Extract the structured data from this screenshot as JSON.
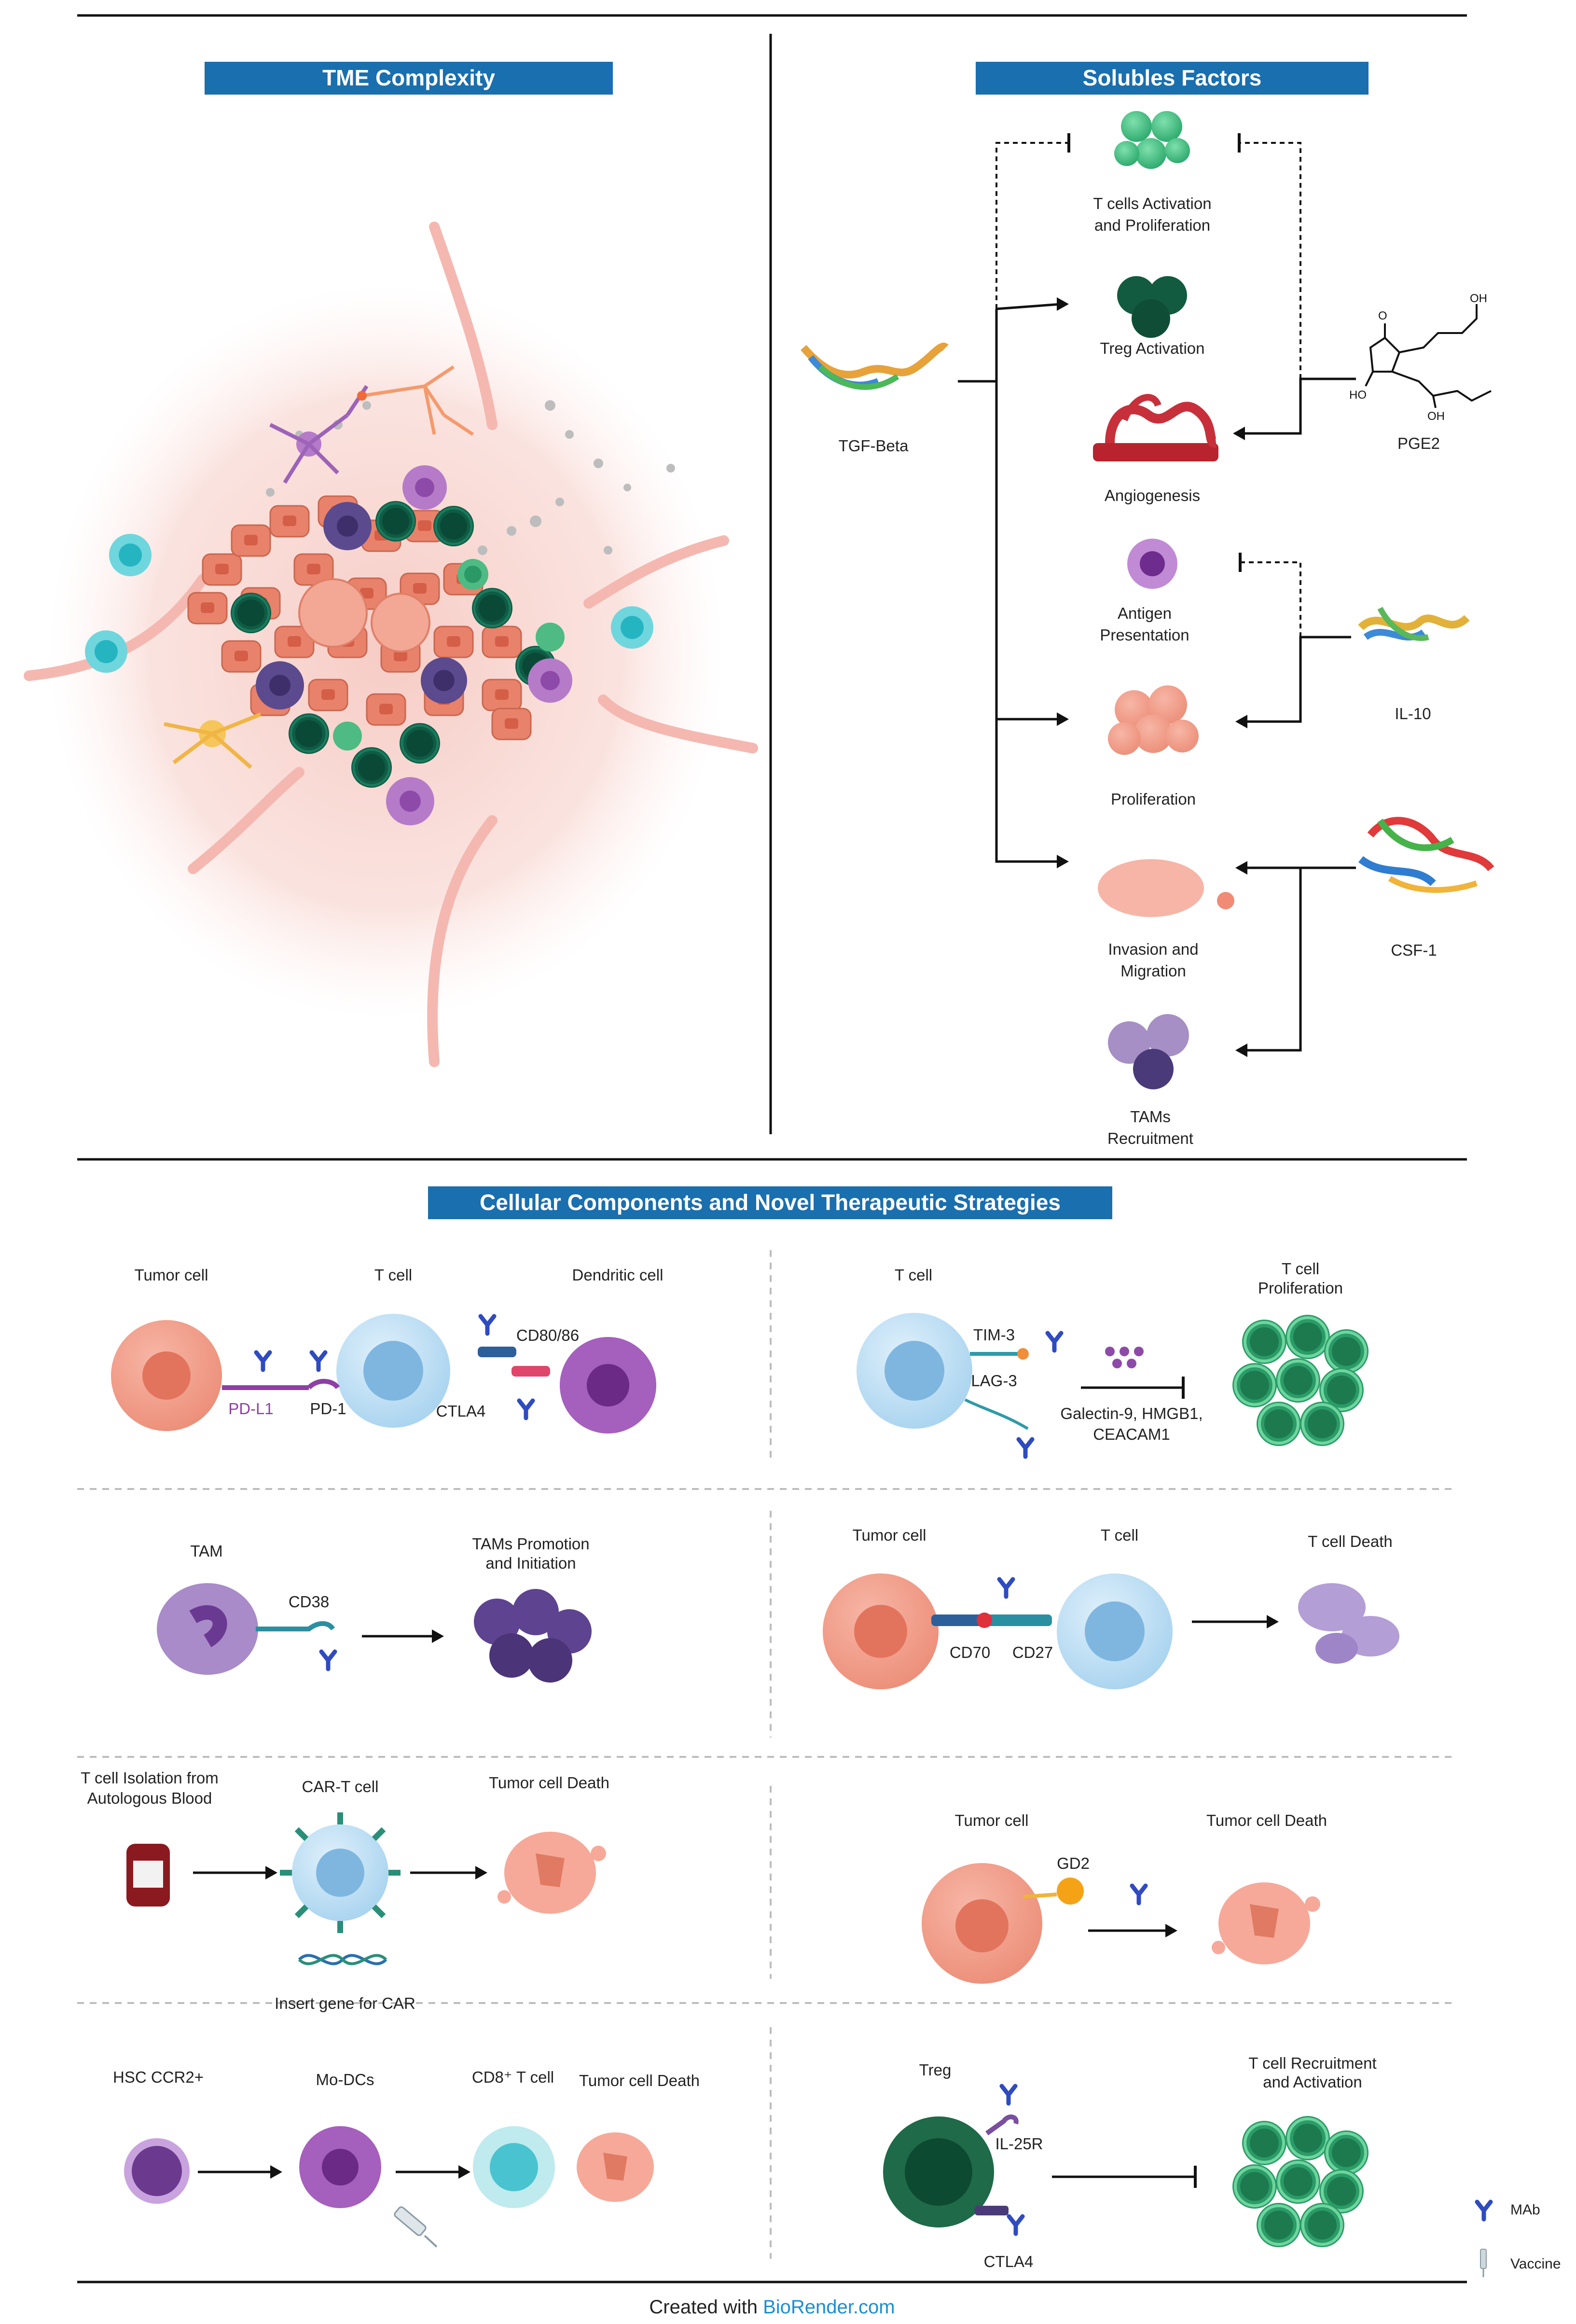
{
  "sections": {
    "tme": "TME Complexity",
    "soluble": "Solubles Factors",
    "cellular": "Cellular Components and Novel Therapeutic Strategies"
  },
  "soluble_panel": {
    "outcomes": {
      "tcell_activation": [
        "T cells Activation",
        "and Proliferation"
      ],
      "treg": "Treg Activation",
      "angiogenesis": "Angiogenesis",
      "antigen": [
        "Antigen",
        "Presentation"
      ],
      "proliferation": "Proliferation",
      "invasion": [
        "Invasion and",
        "Migration"
      ],
      "tams": [
        "TAMs",
        "Recruitment"
      ]
    },
    "factors": {
      "tgf": "TGF-Beta",
      "pge2": "PGE2",
      "il10": "IL-10",
      "csf1": "CSF-1"
    },
    "pge2_atoms": {
      "o": "O",
      "oh1": "OH",
      "ho": "HO",
      "oh2": "OH"
    }
  },
  "cellular_panel": {
    "p1": {
      "tumor": "Tumor cell",
      "tcell": "T cell",
      "dc": "Dendritic cell",
      "cd80": "CD80/86",
      "pdl1": "PD-L1",
      "pd1": "PD-1",
      "ctla4": "CTLA4"
    },
    "p2": {
      "tcell": "T cell",
      "prolif": [
        "T cell",
        "Proliferation"
      ],
      "tim3": "TIM-3",
      "lag3": "LAG-3",
      "ligands": [
        "Galectin-9, HMGB1,",
        "CEACAM1"
      ]
    },
    "p3": {
      "tam": "TAM",
      "cd38": "CD38",
      "promo": [
        "TAMs Promotion",
        "and Initiation"
      ]
    },
    "p4": {
      "tumor": "Tumor cell",
      "tcell": "T cell",
      "death": "T cell Death",
      "cd70": "CD70",
      "cd27": "CD27"
    },
    "p5": {
      "iso": [
        "T cell Isolation from",
        "Autologous Blood"
      ],
      "cart": "CAR-T cell",
      "death": "Tumor cell Death",
      "gene": "Insert gene for CAR"
    },
    "p6": {
      "tumor": "Tumor cell",
      "death": "Tumor cell Death",
      "gd2": "GD2"
    },
    "p7": {
      "hsc": "HSC CCR2+",
      "modc": "Mo-DCs",
      "cd8": "CD8⁺ T cell",
      "death": "Tumor cell Death"
    },
    "p8": {
      "treg": "Treg",
      "recruit": [
        "T cell Recruitment",
        "and Activation"
      ],
      "il25r": "IL-25R",
      "ctla4": "CTLA4"
    }
  },
  "legend": {
    "mab": "MAb",
    "vaccine": "Vaccine"
  },
  "footer": {
    "prefix": "Created with ",
    "brand": "BioRender.com"
  },
  "colors": {
    "header_bg": "#1a6fae",
    "brand": "#1a8fd1",
    "tumor": "#ef9b86",
    "tcell": "#a9d3ee",
    "purple": "#9a55b5",
    "green": "#2f9a68",
    "mab": "#3a55c8"
  }
}
